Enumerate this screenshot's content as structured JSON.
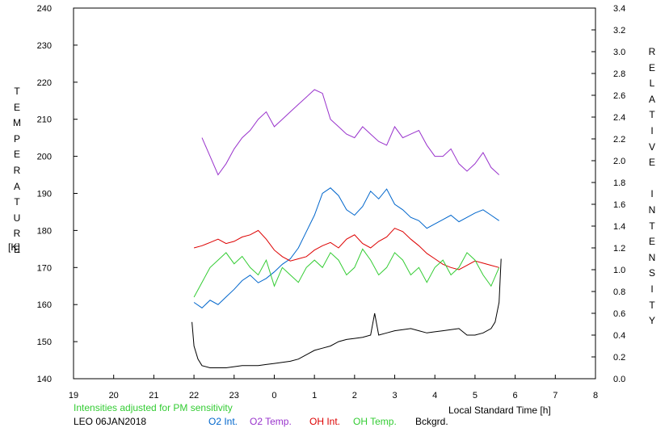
{
  "chart_data": {
    "type": "line",
    "title": "",
    "xlabel": "Local Standard Time [h]",
    "ylabel_left": "TEMPERATURE",
    "ylabel_left_unit": "[K]",
    "ylabel_right": "RELATIVE INTENSITY",
    "xlim": [
      19,
      32
    ],
    "ylim_left": [
      140,
      240
    ],
    "ylim_right": [
      0.0,
      3.4
    ],
    "grid": false,
    "x_ticks": [
      "19",
      "20",
      "21",
      "22",
      "23",
      "0",
      "1",
      "2",
      "3",
      "4",
      "5",
      "6",
      "7",
      "8"
    ],
    "y_left_ticks": [
      "140",
      "150",
      "160",
      "170",
      "180",
      "190",
      "200",
      "210",
      "220",
      "230",
      "240"
    ],
    "y_right_ticks": [
      "0.0",
      "0.2",
      "0.4",
      "0.6",
      "0.8",
      "1.0",
      "1.2",
      "1.4",
      "1.6",
      "1.8",
      "2.0",
      "2.2",
      "2.4",
      "2.6",
      "2.8",
      "3.0",
      "3.2",
      "3.4"
    ],
    "note": "Intensities adjusted for PM sensitivity",
    "station_date": "LEO 06JAN2018",
    "legend_placement": "bottom",
    "series": [
      {
        "name": "O2 Int.",
        "color": "#0066cc",
        "axis": "right",
        "x": [
          22.0,
          22.2,
          22.4,
          22.6,
          22.8,
          23.0,
          23.2,
          23.4,
          23.6,
          23.8,
          24.0,
          24.2,
          24.4,
          24.6,
          24.8,
          25.0,
          25.2,
          25.4,
          25.6,
          25.8,
          26.0,
          26.2,
          26.4,
          26.6,
          26.8,
          27.0,
          27.2,
          27.4,
          27.6,
          27.8,
          28.0,
          28.2,
          28.4,
          28.6,
          28.8,
          29.0,
          29.2,
          29.4,
          29.6
        ],
        "y": [
          0.7,
          0.65,
          0.72,
          0.68,
          0.75,
          0.82,
          0.9,
          0.95,
          0.88,
          0.92,
          0.98,
          1.05,
          1.1,
          1.2,
          1.35,
          1.5,
          1.7,
          1.75,
          1.68,
          1.55,
          1.5,
          1.58,
          1.72,
          1.65,
          1.74,
          1.6,
          1.55,
          1.48,
          1.45,
          1.38,
          1.42,
          1.46,
          1.5,
          1.44,
          1.48,
          1.52,
          1.55,
          1.5,
          1.45
        ]
      },
      {
        "name": "O2 Temp.",
        "color": "#9933cc",
        "axis": "left",
        "x": [
          22.2,
          22.4,
          22.6,
          22.8,
          23.0,
          23.2,
          23.4,
          23.6,
          23.8,
          24.0,
          24.2,
          24.4,
          24.6,
          24.8,
          25.0,
          25.2,
          25.4,
          25.6,
          25.8,
          26.0,
          26.2,
          26.4,
          26.6,
          26.8,
          27.0,
          27.2,
          27.4,
          27.6,
          27.8,
          28.0,
          28.2,
          28.4,
          28.6,
          28.8,
          29.0,
          29.2,
          29.4,
          29.6
        ],
        "y": [
          205,
          200,
          195,
          198,
          202,
          205,
          207,
          210,
          212,
          208,
          210,
          212,
          214,
          216,
          218,
          217,
          210,
          208,
          206,
          205,
          208,
          206,
          204,
          203,
          208,
          205,
          206,
          207,
          203,
          200,
          200,
          202,
          198,
          196,
          198,
          201,
          197,
          195
        ]
      },
      {
        "name": "OH Int.",
        "color": "#dd0000",
        "axis": "right",
        "x": [
          22.0,
          22.2,
          22.4,
          22.6,
          22.8,
          23.0,
          23.2,
          23.4,
          23.6,
          23.8,
          24.0,
          24.2,
          24.4,
          24.6,
          24.8,
          25.0,
          25.2,
          25.4,
          25.6,
          25.8,
          26.0,
          26.2,
          26.4,
          26.6,
          26.8,
          27.0,
          27.2,
          27.4,
          27.6,
          27.8,
          28.0,
          28.2,
          28.4,
          28.6,
          28.8,
          29.0,
          29.2,
          29.4,
          29.6
        ],
        "y": [
          1.2,
          1.22,
          1.25,
          1.28,
          1.24,
          1.26,
          1.3,
          1.32,
          1.36,
          1.28,
          1.18,
          1.12,
          1.08,
          1.1,
          1.12,
          1.18,
          1.22,
          1.25,
          1.2,
          1.28,
          1.32,
          1.24,
          1.2,
          1.26,
          1.3,
          1.38,
          1.35,
          1.28,
          1.22,
          1.15,
          1.1,
          1.05,
          1.02,
          1.0,
          1.04,
          1.08,
          1.06,
          1.04,
          1.02
        ]
      },
      {
        "name": "OH Temp.",
        "color": "#33cc33",
        "axis": "left",
        "x": [
          22.0,
          22.2,
          22.4,
          22.6,
          22.8,
          23.0,
          23.2,
          23.4,
          23.6,
          23.8,
          24.0,
          24.2,
          24.4,
          24.6,
          24.8,
          25.0,
          25.2,
          25.4,
          25.6,
          25.8,
          26.0,
          26.2,
          26.4,
          26.6,
          26.8,
          27.0,
          27.2,
          27.4,
          27.6,
          27.8,
          28.0,
          28.2,
          28.4,
          28.6,
          28.8,
          29.0,
          29.2,
          29.4,
          29.6
        ],
        "y": [
          162,
          166,
          170,
          172,
          174,
          171,
          173,
          170,
          168,
          172,
          165,
          170,
          168,
          166,
          170,
          172,
          170,
          174,
          172,
          168,
          170,
          175,
          172,
          168,
          170,
          174,
          172,
          168,
          170,
          166,
          170,
          172,
          168,
          170,
          174,
          172,
          168,
          165,
          170
        ]
      },
      {
        "name": "Bckgrd.",
        "color": "#000000",
        "axis": "right",
        "x": [
          21.95,
          22.0,
          22.1,
          22.2,
          22.4,
          22.6,
          22.8,
          23.0,
          23.2,
          23.4,
          23.6,
          23.8,
          24.0,
          24.2,
          24.4,
          24.6,
          24.8,
          25.0,
          25.2,
          25.4,
          25.6,
          25.8,
          26.0,
          26.2,
          26.4,
          26.5,
          26.6,
          26.8,
          27.0,
          27.2,
          27.4,
          27.6,
          27.8,
          28.0,
          28.2,
          28.4,
          28.6,
          28.8,
          29.0,
          29.2,
          29.4,
          29.5,
          29.6,
          29.65
        ],
        "y": [
          0.52,
          0.3,
          0.18,
          0.12,
          0.1,
          0.1,
          0.1,
          0.11,
          0.12,
          0.12,
          0.12,
          0.13,
          0.14,
          0.15,
          0.16,
          0.18,
          0.22,
          0.26,
          0.28,
          0.3,
          0.34,
          0.36,
          0.37,
          0.38,
          0.4,
          0.6,
          0.4,
          0.42,
          0.44,
          0.45,
          0.46,
          0.44,
          0.42,
          0.43,
          0.44,
          0.45,
          0.46,
          0.4,
          0.4,
          0.42,
          0.46,
          0.52,
          0.7,
          1.1
        ]
      }
    ]
  }
}
